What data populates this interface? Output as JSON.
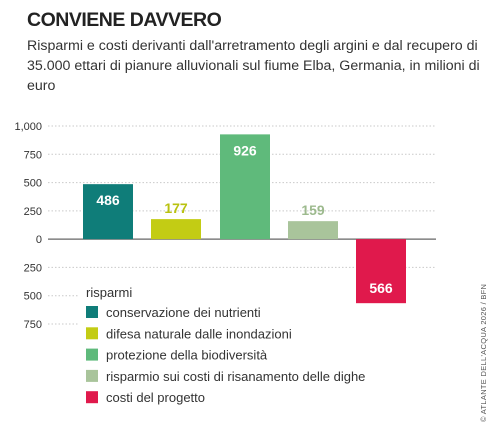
{
  "header": {
    "title": "CONVIENE DAVVERO",
    "subtitle": "Risparmi e costi derivanti dall'arretramento degli argini e dal recupero di 35.000 ettari di pianure alluvionali sul fiume Elba, Germania, in milioni di euro"
  },
  "credit": "© ATLANTE DELL'ACQUA 2026 / BFN",
  "colors": {
    "grid": "#c9c9c9",
    "axis": "#666666",
    "chart_background": "#ffffff"
  },
  "chart_data": {
    "type": "bar",
    "title": "CONVIENE DAVVERO",
    "xlabel": "",
    "ylabel": "",
    "ylim": [
      -750,
      1000
    ],
    "ytick_values": [
      1000,
      750,
      500,
      250,
      0,
      -250,
      -500,
      -750
    ],
    "ytick_labels": [
      "1,000",
      "750",
      "500",
      "250",
      "0",
      "250",
      "500",
      "750"
    ],
    "grid": true,
    "legend_position": "bottom-left",
    "legend_title": "risparmi",
    "categories": [
      "conservazione dei nutrienti",
      "difesa naturale dalle inondazioni",
      "protezione della biodiversità",
      "risparmio sui costi di risanamento delle dighe",
      "costi del progetto"
    ],
    "values": [
      486,
      177,
      926,
      159,
      -566
    ],
    "data_labels": [
      "486",
      "177",
      "926",
      "159",
      "566"
    ],
    "colors": [
      "#0f7d79",
      "#c3cc14",
      "#5fba7b",
      "#a9c49b",
      "#e0194c"
    ],
    "label_colors": [
      "#ffffff",
      "#b9c20f",
      "#ffffff",
      "#9dba8e",
      "#ffffff"
    ],
    "label_inside": [
      true,
      false,
      true,
      false,
      true
    ]
  }
}
